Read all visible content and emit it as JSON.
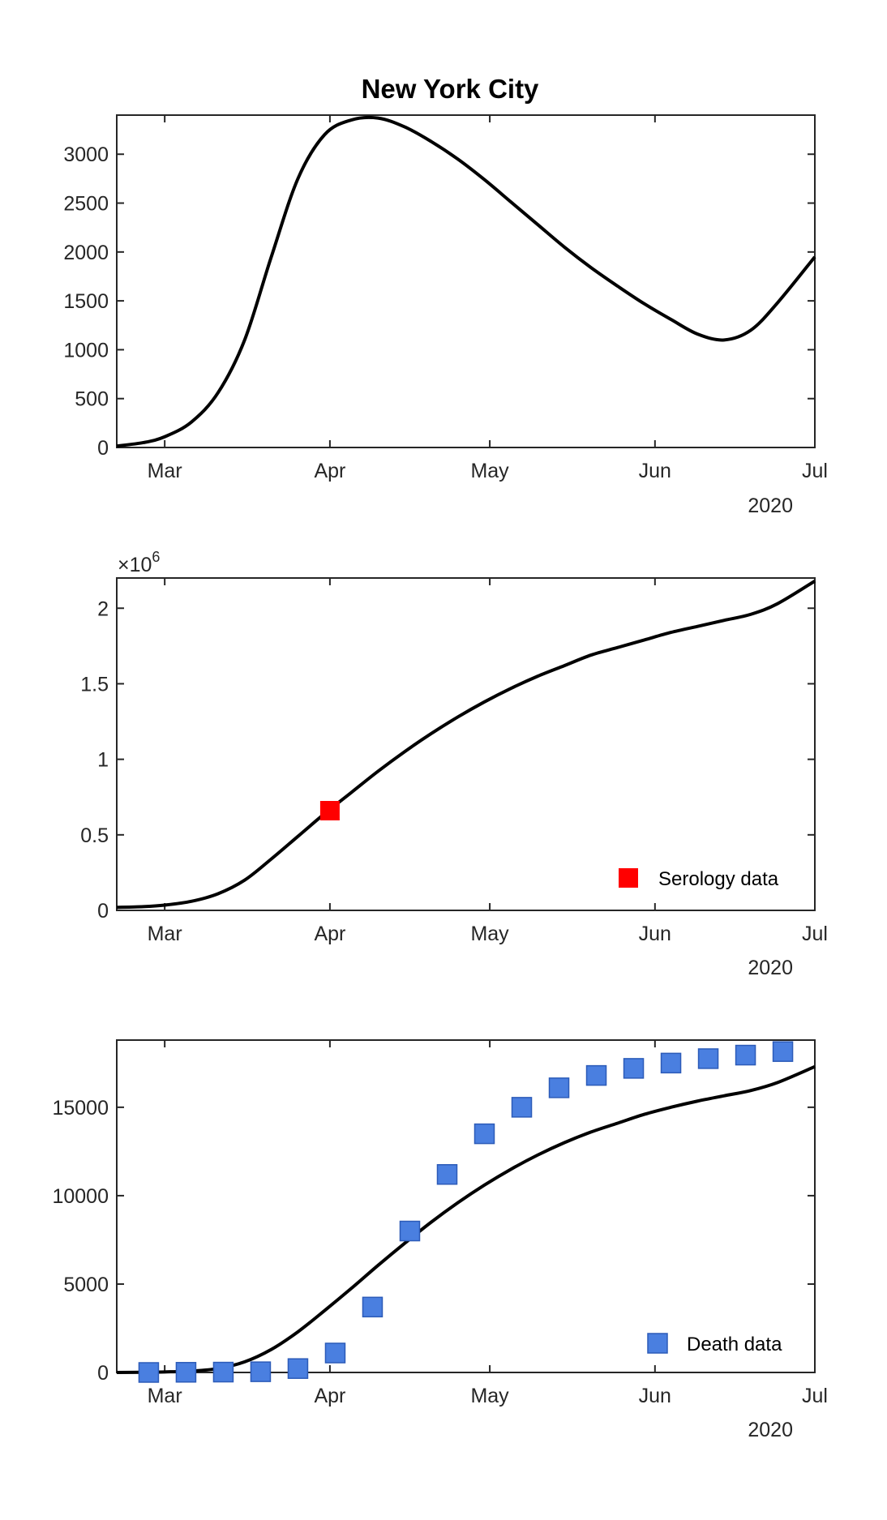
{
  "figure": {
    "title": "New York City",
    "year_label": "2020"
  },
  "colors": {
    "curve": "#000000",
    "serology_marker": "#ff0000",
    "death_marker": "#4a7fe0",
    "death_marker_edge": "#2c5bb8",
    "axes": "#262626"
  },
  "chart_data": [
    {
      "type": "line",
      "title": "New York City",
      "x_ticks": [
        "Mar",
        "Apr",
        "May",
        "Jun",
        "Jul"
      ],
      "xlim": [
        "2020-02-21",
        "2020-07-01"
      ],
      "ylim": [
        0,
        3400
      ],
      "y_ticks": [
        "0",
        "500",
        "1000",
        "1500",
        "2000",
        "2500",
        "3000"
      ],
      "year_label": "2020",
      "series": [
        {
          "x": [
            "2020-02-21",
            "2020-02-26",
            "2020-03-01",
            "2020-03-06",
            "2020-03-11",
            "2020-03-16",
            "2020-03-21",
            "2020-03-26",
            "2020-03-31",
            "2020-04-05",
            "2020-04-10",
            "2020-04-15",
            "2020-04-20",
            "2020-04-25",
            "2020-04-30",
            "2020-05-05",
            "2020-05-10",
            "2020-05-15",
            "2020-05-20",
            "2020-05-25",
            "2020-05-30",
            "2020-06-04",
            "2020-06-09",
            "2020-06-14",
            "2020-06-19",
            "2020-06-24",
            "2020-07-01"
          ],
          "y": [
            15,
            50,
            110,
            260,
            560,
            1100,
            1950,
            2750,
            3200,
            3350,
            3370,
            3280,
            3130,
            2950,
            2740,
            2510,
            2280,
            2050,
            1840,
            1650,
            1470,
            1310,
            1160,
            1100,
            1200,
            1480,
            1950
          ]
        }
      ]
    },
    {
      "type": "line",
      "x_ticks": [
        "Mar",
        "Apr",
        "May",
        "Jun",
        "Jul"
      ],
      "xlim": [
        "2020-02-21",
        "2020-07-01"
      ],
      "ylim": [
        0,
        2.2
      ],
      "y_ticks": [
        "0",
        "0.5",
        "1",
        "1.5",
        "2"
      ],
      "y_exponent_base": "×10",
      "y_exponent": "6",
      "year_label": "2020",
      "series": [
        {
          "x": [
            "2020-02-21",
            "2020-02-26",
            "2020-03-01",
            "2020-03-06",
            "2020-03-11",
            "2020-03-16",
            "2020-03-21",
            "2020-03-26",
            "2020-03-31",
            "2020-04-05",
            "2020-04-10",
            "2020-04-15",
            "2020-04-20",
            "2020-04-25",
            "2020-04-30",
            "2020-05-05",
            "2020-05-10",
            "2020-05-15",
            "2020-05-20",
            "2020-05-25",
            "2020-05-30",
            "2020-06-04",
            "2020-06-09",
            "2020-06-14",
            "2020-06-19",
            "2020-06-24",
            "2020-07-01"
          ],
          "y": [
            0.02,
            0.025,
            0.035,
            0.06,
            0.11,
            0.2,
            0.34,
            0.49,
            0.64,
            0.78,
            0.92,
            1.05,
            1.17,
            1.28,
            1.38,
            1.47,
            1.55,
            1.62,
            1.69,
            1.74,
            1.79,
            1.84,
            1.88,
            1.92,
            1.96,
            2.03,
            2.18
          ]
        }
      ],
      "markers": {
        "name": "Serology data",
        "x": [
          "2020-04-01"
        ],
        "y": [
          0.66
        ]
      },
      "legend": {
        "label": "Serology data",
        "location": "bottom-right"
      }
    },
    {
      "type": "line",
      "x_ticks": [
        "Mar",
        "Apr",
        "May",
        "Jun",
        "Jul"
      ],
      "xlim": [
        "2020-02-21",
        "2020-07-01"
      ],
      "ylim": [
        0,
        18800
      ],
      "y_ticks": [
        "0",
        "5000",
        "10000",
        "15000"
      ],
      "year_label": "2020",
      "series": [
        {
          "x": [
            "2020-02-21",
            "2020-02-26",
            "2020-03-01",
            "2020-03-06",
            "2020-03-11",
            "2020-03-16",
            "2020-03-21",
            "2020-03-26",
            "2020-03-31",
            "2020-04-05",
            "2020-04-10",
            "2020-04-15",
            "2020-04-20",
            "2020-04-25",
            "2020-04-30",
            "2020-05-05",
            "2020-05-10",
            "2020-05-15",
            "2020-05-20",
            "2020-05-25",
            "2020-05-30",
            "2020-06-04",
            "2020-06-09",
            "2020-06-14",
            "2020-06-19",
            "2020-06-24",
            "2020-07-01"
          ],
          "y": [
            0,
            10,
            30,
            80,
            220,
            600,
            1300,
            2300,
            3500,
            4750,
            6050,
            7300,
            8500,
            9600,
            10600,
            11500,
            12300,
            13000,
            13600,
            14100,
            14600,
            15000,
            15350,
            15650,
            15950,
            16400,
            17300
          ]
        }
      ],
      "markers": {
        "name": "Death data",
        "x": [
          "2020-02-27",
          "2020-03-05",
          "2020-03-12",
          "2020-03-19",
          "2020-03-26",
          "2020-04-02",
          "2020-04-09",
          "2020-04-16",
          "2020-04-23",
          "2020-04-30",
          "2020-05-07",
          "2020-05-14",
          "2020-05-21",
          "2020-05-28",
          "2020-06-04",
          "2020-06-11",
          "2020-06-18",
          "2020-06-25"
        ],
        "y": [
          0,
          10,
          20,
          40,
          220,
          1100,
          3700,
          8000,
          11200,
          13500,
          15000,
          16100,
          16800,
          17200,
          17500,
          17750,
          17950,
          18150
        ]
      },
      "legend": {
        "label": "Death data",
        "location": "bottom-right"
      }
    }
  ]
}
